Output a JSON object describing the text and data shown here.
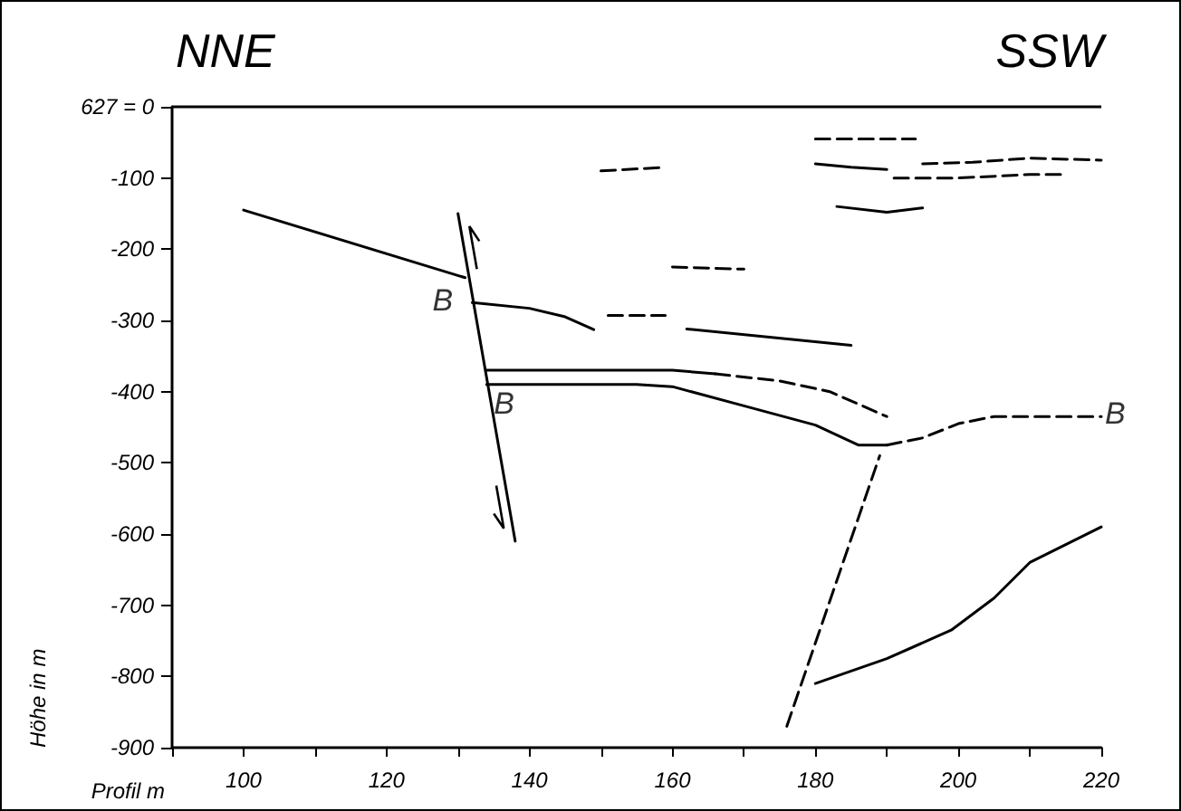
{
  "chart_data": {
    "type": "line",
    "xlabel": "Profil m",
    "ylabel": "Höhe in m",
    "xlim": [
      90,
      220
    ],
    "ylim": [
      -900,
      0
    ],
    "xticks": [
      {
        "value": 90,
        "label": null
      },
      100,
      {
        "value": 110,
        "label": null
      },
      120,
      {
        "value": 130,
        "label": null
      },
      140,
      {
        "value": 150,
        "label": null
      },
      160,
      {
        "value": 170,
        "label": null
      },
      180,
      {
        "value": 190,
        "label": null
      },
      200,
      {
        "value": 210,
        "label": null
      },
      220
    ],
    "yticks": [
      {
        "value": 0,
        "label": "627 = 0"
      },
      -100,
      -200,
      -300,
      -400,
      -500,
      -600,
      -700,
      -800,
      -900
    ],
    "grid": false,
    "marker": "none",
    "ref_lines": [
      {
        "axis": "y",
        "value": 0,
        "color": "#000000"
      }
    ],
    "annotations": [
      "NNE",
      "SSW",
      {
        "text": "B",
        "x": 131,
        "y": -240
      },
      {
        "text": "B",
        "x": 134,
        "y": -390
      },
      {
        "text": "B",
        "x": 220,
        "y": -435
      }
    ],
    "series": [
      {
        "color": "#000000",
        "line_style": "solid",
        "x": [
          100,
          131
        ],
        "values": [
          -145,
          -240
        ]
      },
      {
        "color": "#000000",
        "line_style": "solid",
        "x": [
          132,
          140,
          145,
          149
        ],
        "values": [
          -275,
          -283,
          -295,
          -313
        ]
      },
      {
        "color": "#000000",
        "line_style": "dashed",
        "x": [
          150,
          159
        ],
        "values": [
          -90,
          -85
        ]
      },
      {
        "color": "#000000",
        "line_style": "dashed",
        "x": [
          160,
          170
        ],
        "values": [
          -225,
          -228
        ]
      },
      {
        "color": "#000000",
        "line_style": "dashed",
        "x": [
          151,
          159
        ],
        "values": [
          -293,
          -293
        ]
      },
      {
        "color": "#000000",
        "line_style": "solid",
        "x": [
          162,
          185
        ],
        "values": [
          -312,
          -335
        ]
      },
      {
        "color": "#000000",
        "line_style": "dashed",
        "x": [
          180,
          194
        ],
        "values": [
          -45,
          -45
        ]
      },
      {
        "color": "#000000",
        "line_style": "solid",
        "x": [
          180,
          185,
          190
        ],
        "values": [
          -80,
          -85,
          -88
        ]
      },
      {
        "color": "#000000",
        "line_style": "dashed",
        "x": [
          195,
          202,
          210,
          220
        ],
        "values": [
          -80,
          -78,
          -72,
          -75
        ]
      },
      {
        "color": "#000000",
        "line_style": "dashed",
        "x": [
          191,
          200,
          210,
          215
        ],
        "values": [
          -100,
          -100,
          -95,
          -95
        ]
      },
      {
        "color": "#000000",
        "line_style": "solid",
        "x": [
          183,
          190,
          195
        ],
        "values": [
          -140,
          -148,
          -142
        ]
      },
      {
        "color": "#000000",
        "line_style": "solid",
        "x": [
          134,
          160,
          166
        ],
        "values": [
          -370,
          -370,
          -375
        ]
      },
      {
        "color": "#000000",
        "line_style": "dashed",
        "x": [
          166,
          175,
          182,
          190
        ],
        "values": [
          -375,
          -385,
          -400,
          -435
        ]
      },
      {
        "color": "#000000",
        "line_style": "solid",
        "x": [
          134,
          155,
          160,
          170,
          180,
          186,
          190
        ],
        "values": [
          -390,
          -390,
          -393,
          -420,
          -447,
          -475,
          -475
        ]
      },
      {
        "color": "#000000",
        "line_style": "dashed",
        "x": [
          190,
          195,
          200,
          205,
          220
        ],
        "values": [
          -475,
          -465,
          -445,
          -435,
          -435
        ]
      },
      {
        "color": "#000000",
        "line_style": "solid",
        "x": [
          180,
          190,
          199,
          205,
          210,
          220
        ],
        "values": [
          -810,
          -775,
          -735,
          -690,
          -640,
          -590
        ]
      },
      {
        "color": "#000000",
        "line_style": "solid",
        "x": [
          130,
          138
        ],
        "values": [
          -150,
          -610
        ]
      },
      {
        "color": "#000000",
        "line_style": "dashed",
        "x": [
          176,
          189
        ],
        "values": [
          -870,
          -490
        ]
      }
    ]
  }
}
